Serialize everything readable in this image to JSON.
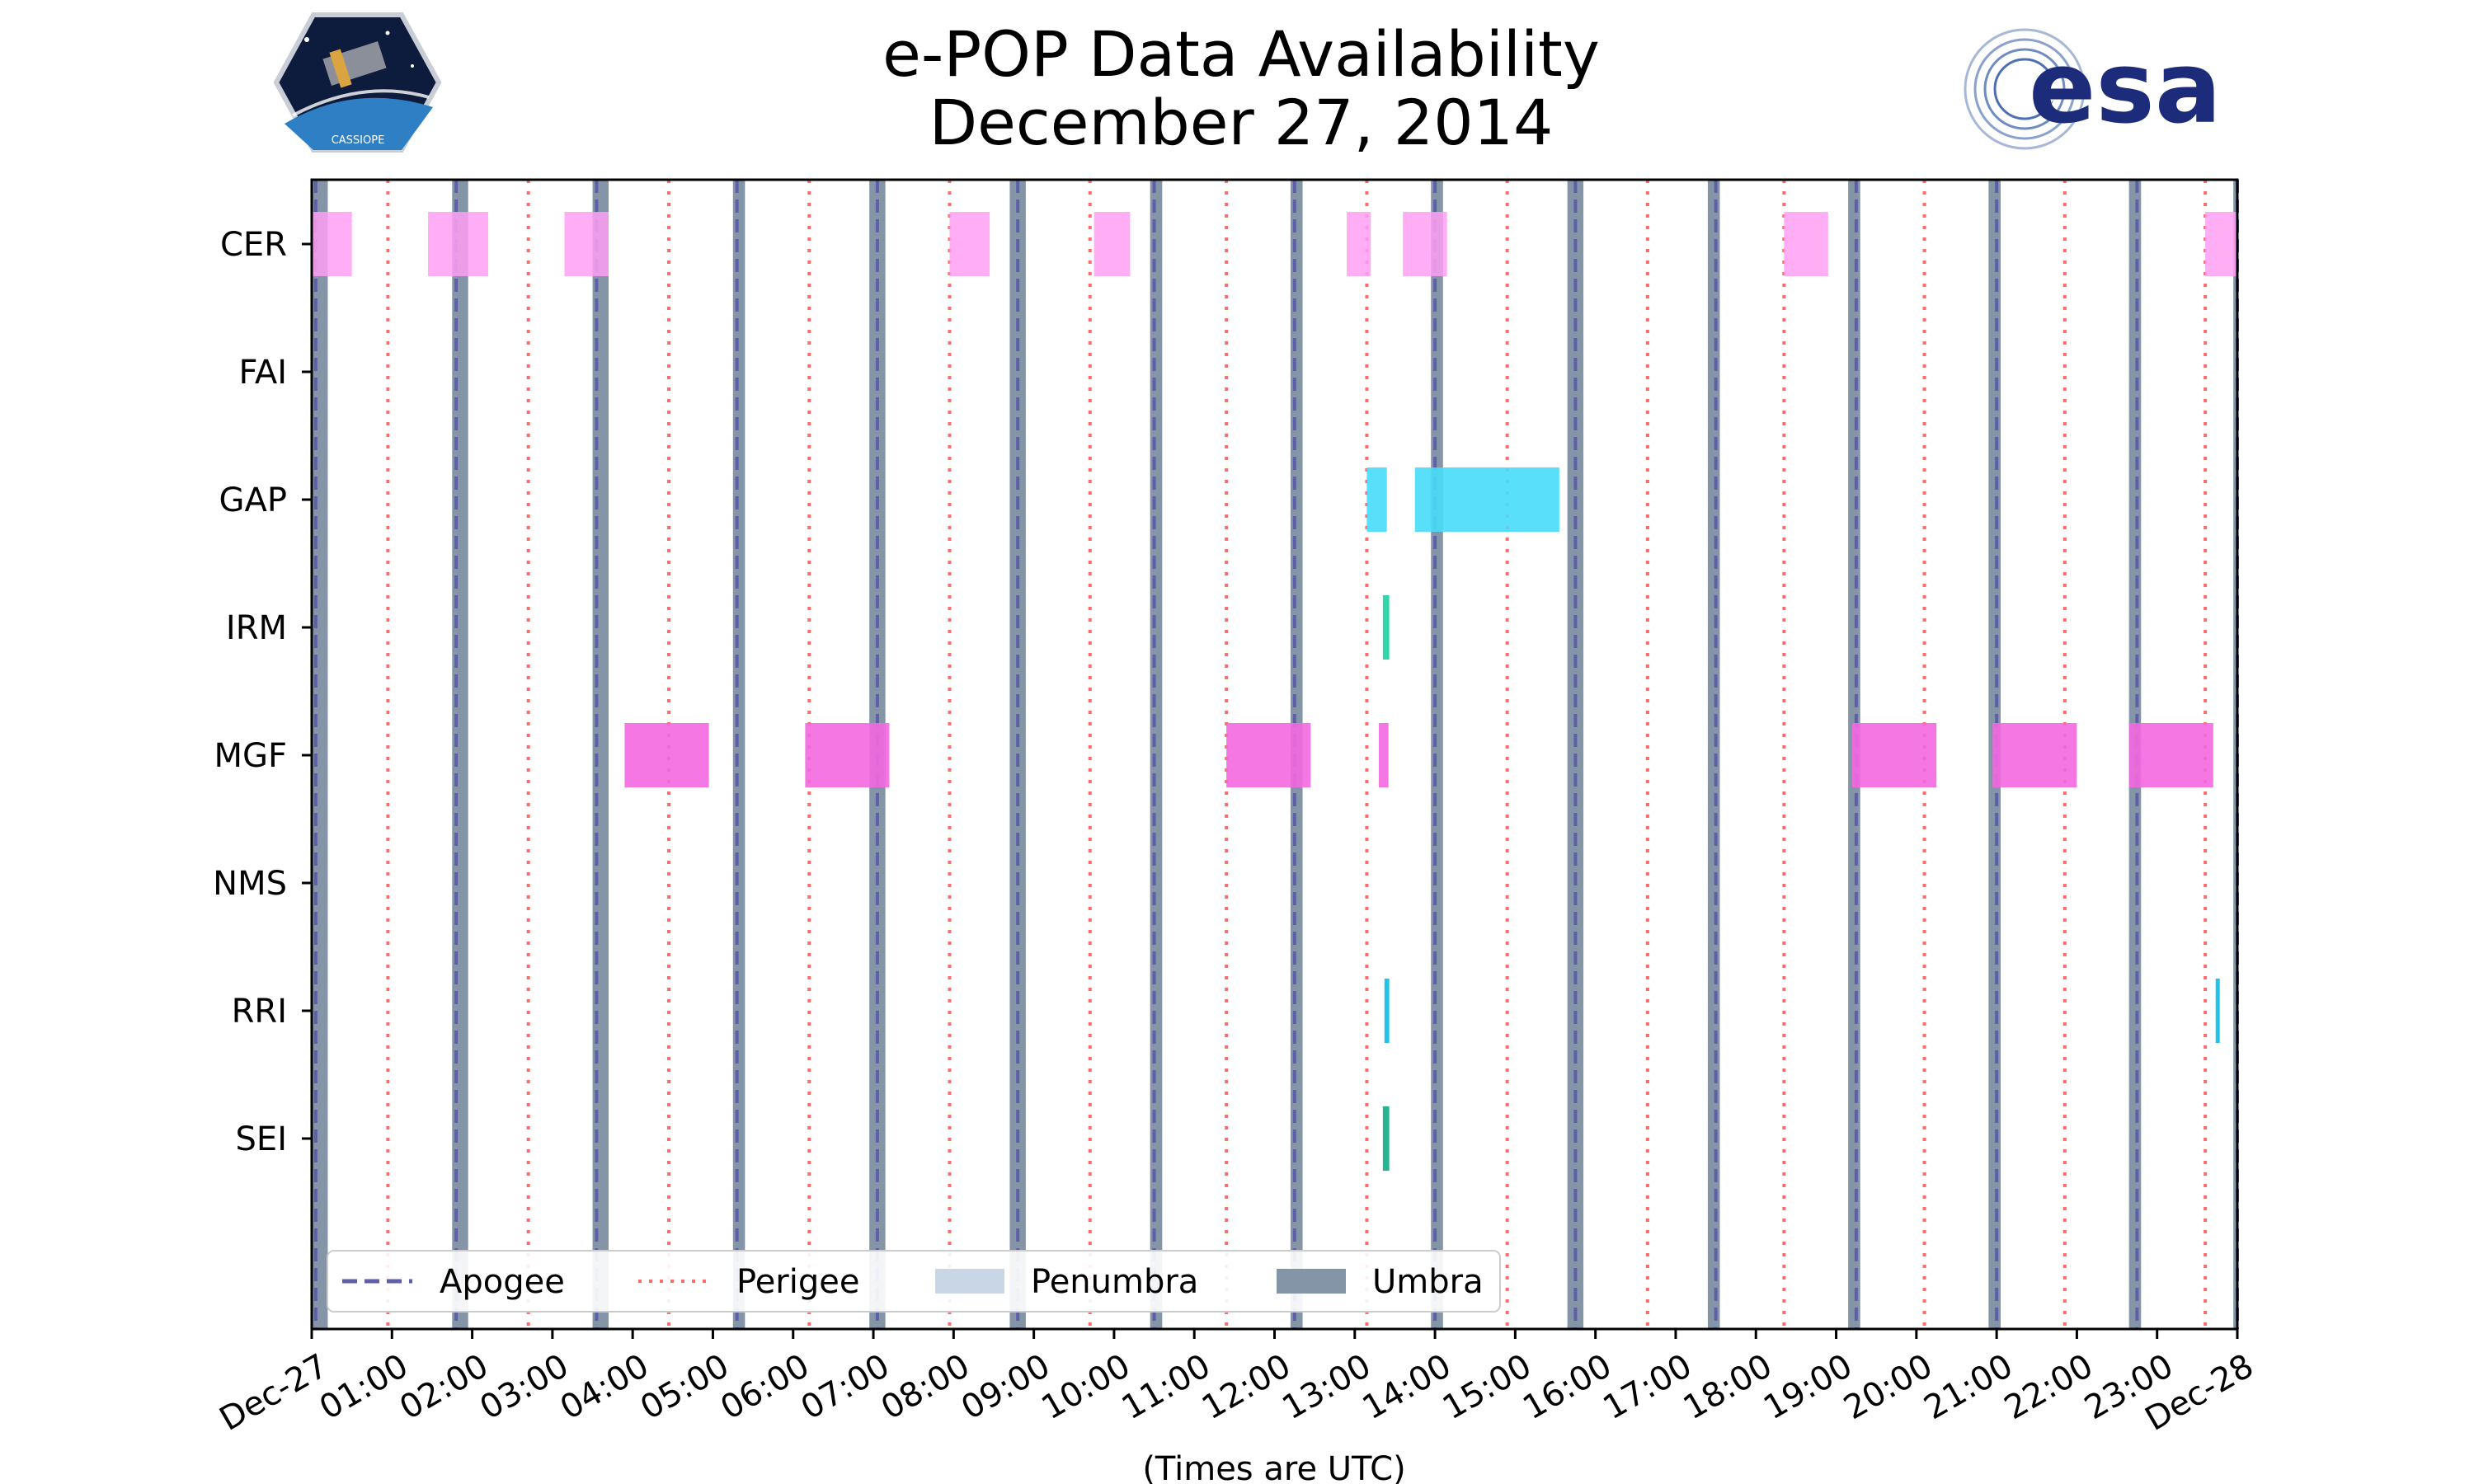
{
  "header": {
    "title_line1": "e-POP Data Availability",
    "title_line2": "December 27, 2014",
    "cassiope_badge_text": "CASSIOPE",
    "esa_logo_text": "esa"
  },
  "colors": {
    "cer": "#ff9ff3",
    "gap": "#48dbfb",
    "irm": "#1dd1a1",
    "mgf": "#f368e0",
    "rri": "#0abde3",
    "sei": "#10ac84",
    "apogee": "#5f5fa8",
    "perigee": "#ff6b6b",
    "penumbra": "#c8d6e5",
    "umbra": "#8395a7"
  },
  "chart_data": {
    "type": "timeline",
    "title": "e-POP Data Availability December 27, 2014",
    "xlabel": "(Times are UTC)",
    "xlim_hours": [
      0,
      24
    ],
    "x_tick_labels": [
      "Dec-27",
      "01:00",
      "02:00",
      "03:00",
      "04:00",
      "05:00",
      "06:00",
      "07:00",
      "08:00",
      "09:00",
      "10:00",
      "11:00",
      "12:00",
      "13:00",
      "14:00",
      "15:00",
      "16:00",
      "17:00",
      "18:00",
      "19:00",
      "20:00",
      "21:00",
      "22:00",
      "23:00",
      "Dec-28"
    ],
    "instruments": [
      "CER",
      "FAI",
      "GAP",
      "IRM",
      "MGF",
      "NMS",
      "RRI",
      "SEI"
    ],
    "intervals": {
      "CER": [
        [
          0.0,
          0.5
        ],
        [
          1.45,
          2.2
        ],
        [
          3.15,
          3.7
        ],
        [
          7.95,
          8.45
        ],
        [
          9.75,
          10.2
        ],
        [
          12.9,
          13.2
        ],
        [
          13.6,
          14.15
        ],
        [
          18.35,
          18.9
        ],
        [
          23.6,
          24.0
        ]
      ],
      "FAI": [],
      "GAP": [
        [
          13.15,
          13.4
        ],
        [
          13.75,
          15.55
        ]
      ],
      "IRM": [
        [
          13.35,
          13.43
        ]
      ],
      "MGF": [
        [
          3.9,
          4.95
        ],
        [
          6.15,
          7.2
        ],
        [
          11.4,
          12.45
        ],
        [
          13.3,
          13.42
        ],
        [
          19.2,
          20.25
        ],
        [
          20.95,
          22.0
        ],
        [
          22.65,
          23.7
        ]
      ],
      "NMS": [],
      "RRI": [
        [
          13.37,
          13.43
        ],
        [
          23.73,
          23.78
        ]
      ],
      "SEI": [
        [
          13.35,
          13.43
        ]
      ]
    },
    "apogee_hours": [
      0.05,
      1.8,
      3.55,
      5.3,
      7.05,
      8.8,
      10.5,
      12.25,
      14.0,
      15.75,
      17.5,
      19.25,
      21.0,
      22.75,
      24.0
    ],
    "perigee_hours": [
      0.95,
      2.7,
      4.45,
      6.2,
      7.95,
      9.7,
      11.4,
      13.15,
      14.9,
      16.65,
      18.35,
      20.1,
      21.85,
      23.6
    ],
    "umbra_hours": [
      [
        0.0,
        0.2
      ],
      [
        1.75,
        1.95
      ],
      [
        3.5,
        3.7
      ],
      [
        5.25,
        5.4
      ],
      [
        6.95,
        7.15
      ],
      [
        8.7,
        8.9
      ],
      [
        10.45,
        10.6
      ],
      [
        12.2,
        12.35
      ],
      [
        13.95,
        14.1
      ],
      [
        15.65,
        15.85
      ],
      [
        17.4,
        17.55
      ],
      [
        19.15,
        19.3
      ],
      [
        20.9,
        21.05
      ],
      [
        22.65,
        22.8
      ],
      [
        23.95,
        24.0
      ]
    ],
    "legend": {
      "placement": "lower-left",
      "entries": [
        {
          "label": "Apogee",
          "style": "dashed"
        },
        {
          "label": "Perigee",
          "style": "dotted"
        },
        {
          "label": "Penumbra",
          "style": "patch-light"
        },
        {
          "label": "Umbra",
          "style": "patch-dark"
        }
      ]
    }
  }
}
